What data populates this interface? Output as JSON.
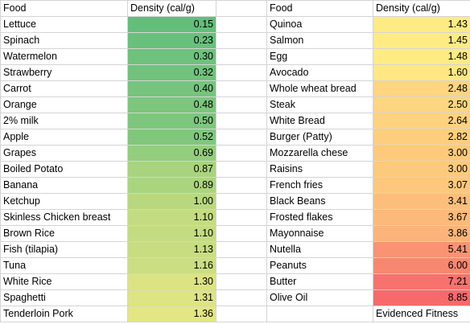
{
  "headers": {
    "left_food": "Food",
    "left_density": "Density (cal/g)",
    "right_food": "Food",
    "right_density": "Density (cal/g)"
  },
  "left_rows": [
    {
      "food": "Lettuce",
      "density": "0.15",
      "color": "#63be7b"
    },
    {
      "food": "Spinach",
      "density": "0.23",
      "color": "#69c07c"
    },
    {
      "food": "Watermelon",
      "density": "0.30",
      "color": "#6ec27c"
    },
    {
      "food": "Strawberry",
      "density": "0.32",
      "color": "#70c27c"
    },
    {
      "food": "Carrot",
      "density": "0.40",
      "color": "#76c47d"
    },
    {
      "food": "Orange",
      "density": "0.48",
      "color": "#7cc67d"
    },
    {
      "food": "2% milk",
      "density": "0.50",
      "color": "#7ec67d"
    },
    {
      "food": "Apple",
      "density": "0.52",
      "color": "#80c77d"
    },
    {
      "food": "Grapes",
      "density": "0.69",
      "color": "#94cd7e"
    },
    {
      "food": "Boiled Potato",
      "density": "0.87",
      "color": "#a9d37f"
    },
    {
      "food": "Banana",
      "density": "0.89",
      "color": "#abd47f"
    },
    {
      "food": "Ketchup",
      "density": "1.00",
      "color": "#b8d880"
    },
    {
      "food": "Skinless Chicken breast",
      "density": "1.10",
      "color": "#c4dc81"
    },
    {
      "food": "Brown Rice",
      "density": "1.10",
      "color": "#c4dc81"
    },
    {
      "food": "Fish (tilapia)",
      "density": "1.13",
      "color": "#c8dd81"
    },
    {
      "food": "Tuna",
      "density": "1.16",
      "color": "#cbde82"
    },
    {
      "food": "White Rice",
      "density": "1.30",
      "color": "#dce382"
    },
    {
      "food": "Spaghetti",
      "density": "1.31",
      "color": "#dde483"
    },
    {
      "food": "Tenderloin Pork",
      "density": "1.36",
      "color": "#e3e683"
    }
  ],
  "right_rows": [
    {
      "food": "Quinoa",
      "density": "1.43",
      "color": "#ffeb84"
    },
    {
      "food": "Salmon",
      "density": "1.45",
      "color": "#ffeb84"
    },
    {
      "food": "Egg",
      "density": "1.48",
      "color": "#ffeb84"
    },
    {
      "food": "Avocado",
      "density": "1.60",
      "color": "#ffe883"
    },
    {
      "food": "Whole wheat bread",
      "density": "2.48",
      "color": "#fed580"
    },
    {
      "food": "Steak",
      "density": "2.50",
      "color": "#fed580"
    },
    {
      "food": "White Bread",
      "density": "2.64",
      "color": "#fed27f"
    },
    {
      "food": "Burger (Patty)",
      "density": "2.82",
      "color": "#fdce7e"
    },
    {
      "food": "Mozzarella chese",
      "density": "3.00",
      "color": "#fdca7d"
    },
    {
      "food": "Raisins",
      "density": "3.00",
      "color": "#fdca7d"
    },
    {
      "food": "French fries",
      "density": "3.07",
      "color": "#fdc87d"
    },
    {
      "food": "Black Beans",
      "density": "3.41",
      "color": "#fcbf7b"
    },
    {
      "food": "Frosted flakes",
      "density": "3.67",
      "color": "#fbb97a"
    },
    {
      "food": "Mayonnaise",
      "density": "3.86",
      "color": "#fbb479"
    },
    {
      "food": "Nutella",
      "density": "5.41",
      "color": "#f99373"
    },
    {
      "food": "Peanuts",
      "density": "6.00",
      "color": "#f8876f"
    },
    {
      "food": "Butter",
      "density": "7.21",
      "color": "#f7726d"
    },
    {
      "food": "Olive Oil",
      "density": "8.85",
      "color": "#f8696b"
    }
  ],
  "footer_label": "Evidenced Fitness"
}
